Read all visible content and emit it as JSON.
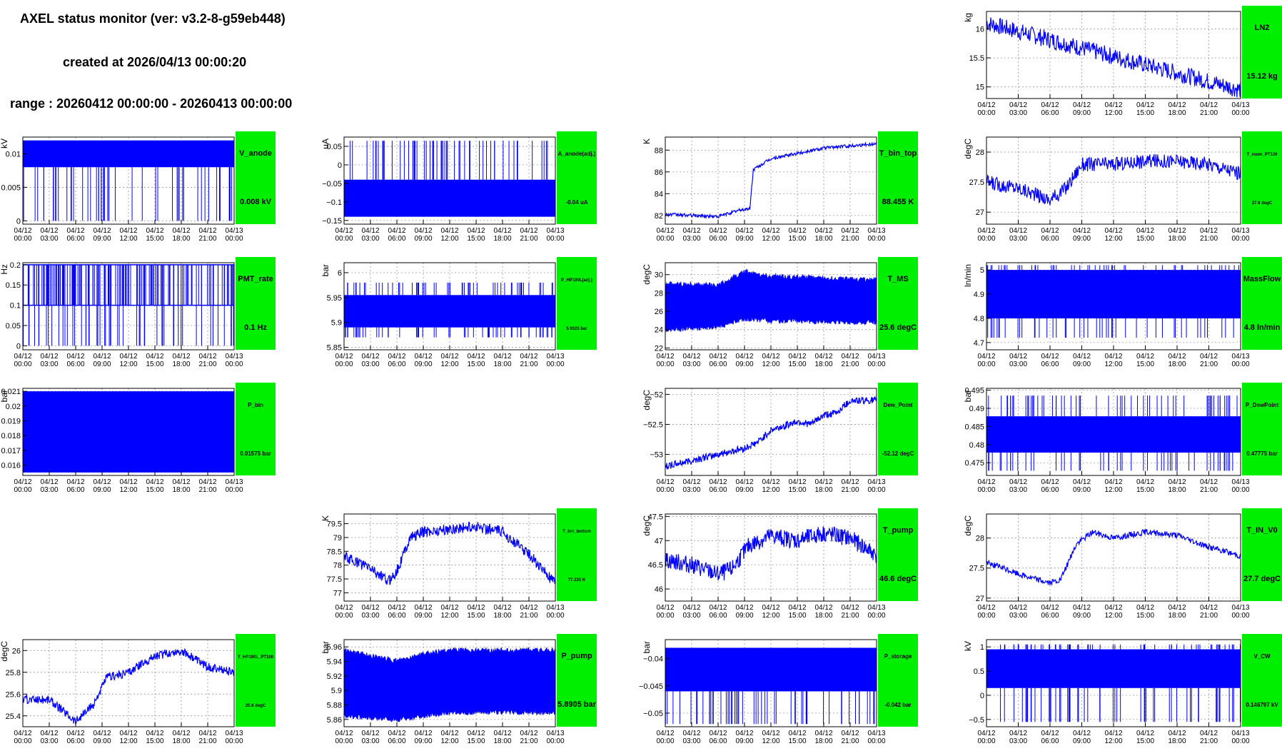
{
  "header": {
    "title": "AXEL status monitor (ver: v3.2-8-g59eb448)",
    "created": "created at 2026/04/13 00:00:20",
    "range": "range : 20260412 00:00:00 - 20260413 00:00:00"
  },
  "colors": {
    "trace": "#0000ff",
    "badge": "#00ee00",
    "frame": "#000000",
    "grid": "#888888"
  },
  "time_ticks": [
    [
      "04/12",
      "00:00"
    ],
    [
      "04/12",
      "03:00"
    ],
    [
      "04/12",
      "06:00"
    ],
    [
      "04/12",
      "09:00"
    ],
    [
      "04/12",
      "12:00"
    ],
    [
      "04/12",
      "15:00"
    ],
    [
      "04/12",
      "18:00"
    ],
    [
      "04/12",
      "21:00"
    ],
    [
      "04/13",
      "00:00"
    ]
  ],
  "chart_data": [
    {
      "id": "LN2",
      "type": "line",
      "title": "LN2",
      "value_label": "15.12 kg",
      "ylabel": "kg",
      "ylim": [
        14.8,
        16.3
      ],
      "y_ticks": [
        {
          "v": 15,
          "label": "15"
        },
        {
          "v": 15.5,
          "label": "15.5"
        },
        {
          "v": 16,
          "label": "16"
        }
      ],
      "x": [
        0,
        24
      ],
      "y_trend": [
        16.1,
        14.95
      ],
      "noise": 0.15,
      "grid": true,
      "title_size": "large",
      "value_size": "large"
    },
    {
      "id": "V_anode",
      "type": "line",
      "title": "V_anode",
      "value_label": "0.008 kV",
      "ylabel": "kV",
      "ylim": [
        -0.0005,
        0.0125
      ],
      "y_ticks": [
        {
          "v": 0,
          "label": "0"
        },
        {
          "v": 0.005,
          "label": "0.005"
        },
        {
          "v": 0.01,
          "label": "0.01"
        }
      ],
      "band": [
        0.008,
        0.012
      ],
      "spikes_low": 0.0,
      "x": [
        0,
        24
      ],
      "grid": true,
      "title_size": "large",
      "value_size": "large"
    },
    {
      "id": "A_anode",
      "type": "line",
      "title": "A_anode(adj.)",
      "value_label": "-0.04 uA",
      "ylabel": "uA",
      "ylim": [
        -0.16,
        0.075
      ],
      "y_ticks": [
        {
          "v": -0.15,
          "label": "−0.15"
        },
        {
          "v": -0.1,
          "label": "−0.1"
        },
        {
          "v": -0.05,
          "label": "−0.05"
        },
        {
          "v": 0,
          "label": "0"
        },
        {
          "v": 0.05,
          "label": "0.05"
        }
      ],
      "band": [
        -0.14,
        -0.04
      ],
      "spikes_high": 0.065,
      "x": [
        0,
        24
      ],
      "grid": true,
      "title_size": "small",
      "value_size": "small"
    },
    {
      "id": "T_bin_top",
      "type": "line",
      "title": "T_bin_top",
      "value_label": "88.455 K",
      "ylabel": "K",
      "ylim": [
        81.2,
        89.2
      ],
      "y_ticks": [
        {
          "v": 82,
          "label": "82"
        },
        {
          "v": 84,
          "label": "84"
        },
        {
          "v": 86,
          "label": "86"
        },
        {
          "v": 88,
          "label": "88"
        }
      ],
      "x": [
        0,
        3,
        6,
        8.5,
        9.6,
        10,
        12,
        15,
        18,
        21,
        24
      ],
      "y": [
        82.1,
        82.0,
        81.9,
        82.5,
        82.6,
        86.2,
        87.2,
        87.7,
        88.2,
        88.4,
        88.6
      ],
      "noise": 0.15,
      "grid": true,
      "title_size": "large",
      "value_size": "large"
    },
    {
      "id": "T_room_PT100",
      "type": "line",
      "title": "T_room_PT100",
      "value_label": "27.6 degC",
      "ylabel": "degC",
      "ylim": [
        26.8,
        28.25
      ],
      "y_ticks": [
        {
          "v": 27,
          "label": "27"
        },
        {
          "v": 27.5,
          "label": "27.5"
        },
        {
          "v": 28,
          "label": "28"
        }
      ],
      "x": [
        0,
        3,
        6,
        7.5,
        9,
        12,
        15,
        18,
        21,
        24
      ],
      "y": [
        27.5,
        27.4,
        27.2,
        27.4,
        27.8,
        27.8,
        27.85,
        27.85,
        27.8,
        27.65
      ],
      "noise": 0.12,
      "grid": true,
      "title_size": "tiny",
      "value_size": "tiny"
    },
    {
      "id": "PMT_rate",
      "type": "line",
      "title": "PMT_rate",
      "value_label": "0.1 Hz",
      "ylabel": "Hz",
      "ylim": [
        -0.01,
        0.205
      ],
      "y_ticks": [
        {
          "v": 0,
          "label": "0"
        },
        {
          "v": 0.05,
          "label": "0.05"
        },
        {
          "v": 0.1,
          "label": "0.1"
        },
        {
          "v": 0.15,
          "label": "0.15"
        },
        {
          "v": 0.2,
          "label": "0.2"
        }
      ],
      "levels": [
        0.1,
        0.2
      ],
      "spikes_low": 0.0,
      "x": [
        0,
        24
      ],
      "grid": true,
      "title_size": "large",
      "value_size": "large"
    },
    {
      "id": "P_HP190L",
      "type": "line",
      "title": "P_HP190L(adj.)",
      "value_label": "5.9325 bar",
      "ylabel": "bar",
      "ylim": [
        5.845,
        6.02
      ],
      "y_ticks": [
        {
          "v": 5.85,
          "label": "5.85"
        },
        {
          "v": 5.9,
          "label": "5.9"
        },
        {
          "v": 5.95,
          "label": "5.95"
        },
        {
          "v": 6,
          "label": "6"
        }
      ],
      "band": [
        5.89,
        5.955
      ],
      "spikes_high": 5.98,
      "spikes_low": 5.87,
      "x": [
        0,
        24
      ],
      "grid": true,
      "title_size": "tiny",
      "value_size": "tiny"
    },
    {
      "id": "T_MS",
      "type": "line",
      "title": "T_MS",
      "value_label": "25.6 degC",
      "ylabel": "degC",
      "ylim": [
        21.8,
        31.3
      ],
      "y_ticks": [
        {
          "v": 22,
          "label": "22"
        },
        {
          "v": 24,
          "label": "24"
        },
        {
          "v": 26,
          "label": "26"
        },
        {
          "v": 28,
          "label": "28"
        },
        {
          "v": 30,
          "label": "30"
        }
      ],
      "x": [
        0,
        6,
        9,
        12,
        24
      ],
      "y_top": [
        29,
        28.8,
        30.3,
        29.8,
        29.4
      ],
      "y_bot": [
        24,
        24.3,
        25.2,
        25,
        24.8
      ],
      "grid": true,
      "title_size": "large",
      "value_size": "large"
    },
    {
      "id": "MassFlow",
      "type": "line",
      "title": "MassFlow",
      "value_label": "4.8 ln/min",
      "ylabel": "ln/min",
      "ylim": [
        4.67,
        5.03
      ],
      "y_ticks": [
        {
          "v": 4.7,
          "label": "4.7"
        },
        {
          "v": 4.8,
          "label": "4.8"
        },
        {
          "v": 4.9,
          "label": "4.9"
        },
        {
          "v": 5,
          "label": "5"
        }
      ],
      "band": [
        4.8,
        5.0
      ],
      "spikes_high": 5.02,
      "spikes_low": 4.72,
      "x": [
        0,
        24
      ],
      "grid": true,
      "title_size": "large",
      "value_size": "large"
    },
    {
      "id": "P_bin",
      "type": "line",
      "title": "P_bin",
      "value_label": "0.01575 bar",
      "ylabel": "bar",
      "ylim": [
        0.0153,
        0.0212
      ],
      "y_ticks": [
        {
          "v": 0.016,
          "label": "0.016"
        },
        {
          "v": 0.017,
          "label": "0.017"
        },
        {
          "v": 0.018,
          "label": "0.018"
        },
        {
          "v": 0.019,
          "label": "0.019"
        },
        {
          "v": 0.02,
          "label": "0.02"
        },
        {
          "v": 0.021,
          "label": "0.021"
        }
      ],
      "band": [
        0.0155,
        0.021
      ],
      "x": [
        0,
        24
      ],
      "grid": true,
      "title_size": "small",
      "value_size": "small"
    },
    {
      "id": "Dew_Point",
      "type": "line",
      "title": "Dew_Point",
      "value_label": "-52.12 degC",
      "ylabel": "degC",
      "ylim": [
        -53.35,
        -51.9
      ],
      "y_ticks": [
        {
          "v": -53,
          "label": "−53"
        },
        {
          "v": -52.5,
          "label": "−52.5"
        },
        {
          "v": -52,
          "label": "−52"
        }
      ],
      "x": [
        0,
        3,
        6,
        9,
        10.5,
        12,
        15,
        16.5,
        18,
        19.5,
        21,
        22,
        24
      ],
      "y": [
        -53.2,
        -53.1,
        -53.0,
        -52.9,
        -52.8,
        -52.6,
        -52.45,
        -52.5,
        -52.35,
        -52.3,
        -52.1,
        -52.1,
        -52.1
      ],
      "noise": 0.06,
      "grid": true,
      "title_size": "small",
      "value_size": "small"
    },
    {
      "id": "P_DewPoint",
      "type": "line",
      "title": "P_DewPoint",
      "value_label": "0.47775 bar",
      "ylabel": "bar",
      "ylim": [
        0.4715,
        0.4955
      ],
      "y_ticks": [
        {
          "v": 0.475,
          "label": "0.475"
        },
        {
          "v": 0.48,
          "label": "0.48"
        },
        {
          "v": 0.485,
          "label": "0.485"
        },
        {
          "v": 0.49,
          "label": "0.49"
        },
        {
          "v": 0.495,
          "label": "0.495"
        }
      ],
      "band": [
        0.4778,
        0.4878
      ],
      "spikes_high": 0.4935,
      "spikes_low": 0.4728,
      "x": [
        0,
        24
      ],
      "grid": true,
      "title_size": "small",
      "value_size": "small"
    },
    {
      "id": "T_bin_bottom",
      "type": "line",
      "title": "T_bin_bottom",
      "value_label": "77.235 K",
      "ylabel": "K",
      "ylim": [
        76.7,
        79.85
      ],
      "y_ticks": [
        {
          "v": 77,
          "label": "77"
        },
        {
          "v": 77.5,
          "label": "77.5"
        },
        {
          "v": 78,
          "label": "78"
        },
        {
          "v": 78.5,
          "label": "78.5"
        },
        {
          "v": 79,
          "label": "79"
        },
        {
          "v": 79.5,
          "label": "79.5"
        }
      ],
      "x": [
        0,
        3,
        5,
        6,
        7.5,
        9,
        12,
        15,
        18,
        21,
        24
      ],
      "y": [
        78.3,
        77.9,
        77.4,
        77.8,
        79.0,
        79.2,
        79.3,
        79.4,
        79.2,
        78.4,
        77.3
      ],
      "noise": 0.2,
      "grid": true,
      "title_size": "tiny",
      "value_size": "tiny"
    },
    {
      "id": "T_pump",
      "type": "line",
      "title": "T_pump",
      "value_label": "46.6 degC",
      "ylabel": "degC",
      "ylim": [
        45.75,
        47.55
      ],
      "y_ticks": [
        {
          "v": 46,
          "label": "46"
        },
        {
          "v": 46.5,
          "label": "46.5"
        },
        {
          "v": 47,
          "label": "47"
        },
        {
          "v": 47.5,
          "label": "47.5"
        }
      ],
      "x": [
        0,
        3,
        6,
        7.5,
        9.5,
        12,
        15,
        18,
        21,
        24
      ],
      "y": [
        46.6,
        46.5,
        46.3,
        46.4,
        46.9,
        47.1,
        47.0,
        47.15,
        47.05,
        46.7
      ],
      "noise": 0.18,
      "grid": true,
      "title_size": "large",
      "value_size": "large"
    },
    {
      "id": "T_IN_V0",
      "type": "line",
      "title": "T_IN_V0",
      "value_label": "27.7 degC",
      "ylabel": "degC",
      "ylim": [
        26.95,
        28.4
      ],
      "y_ticks": [
        {
          "v": 27,
          "label": "27"
        },
        {
          "v": 27.5,
          "label": "27.5"
        },
        {
          "v": 28,
          "label": "28"
        }
      ],
      "x": [
        0,
        3,
        6,
        7,
        8.5,
        10,
        12,
        15,
        18,
        21,
        24
      ],
      "y": [
        27.6,
        27.4,
        27.25,
        27.3,
        27.9,
        28.1,
        28.0,
        28.1,
        28.05,
        27.85,
        27.7
      ],
      "noise": 0.05,
      "grid": true,
      "title_size": "large",
      "value_size": "large"
    },
    {
      "id": "T_HP190L_PT100",
      "type": "line",
      "title": "T_HP190L_PT100",
      "value_label": "25.6 degC",
      "ylabel": "degC",
      "ylim": [
        25.3,
        26.1
      ],
      "y_ticks": [
        {
          "v": 25.4,
          "label": "25.4"
        },
        {
          "v": 25.6,
          "label": "25.6"
        },
        {
          "v": 25.8,
          "label": "25.8"
        },
        {
          "v": 26,
          "label": "26"
        }
      ],
      "x": [
        0,
        3,
        4.5,
        6,
        8,
        9.5,
        12,
        15,
        18,
        21,
        24
      ],
      "y": [
        25.55,
        25.55,
        25.45,
        25.35,
        25.5,
        25.75,
        25.8,
        25.95,
        26.0,
        25.85,
        25.8
      ],
      "noise": 0.04,
      "grid": true,
      "title_size": "tiny",
      "value_size": "tiny"
    },
    {
      "id": "P_pump",
      "type": "line",
      "title": "P_pump",
      "value_label": "5.8905 bar",
      "ylabel": "bar",
      "ylim": [
        5.85,
        5.97
      ],
      "y_ticks": [
        {
          "v": 5.86,
          "label": "5.86"
        },
        {
          "v": 5.88,
          "label": "5.88"
        },
        {
          "v": 5.9,
          "label": "5.9"
        },
        {
          "v": 5.92,
          "label": "5.92"
        },
        {
          "v": 5.94,
          "label": "5.94"
        },
        {
          "v": 5.96,
          "label": "5.96"
        }
      ],
      "x": [
        0,
        6,
        9,
        12,
        24
      ],
      "y_top": [
        5.955,
        5.94,
        5.95,
        5.955,
        5.955
      ],
      "y_bot": [
        5.865,
        5.86,
        5.865,
        5.87,
        5.87
      ],
      "grid": true,
      "title_size": "large",
      "value_size": "large"
    },
    {
      "id": "P_storage",
      "type": "line",
      "title": "P_storage",
      "value_label": "-0.042 bar",
      "ylabel": "bar",
      "ylim": [
        -0.0525,
        -0.0365
      ],
      "y_ticks": [
        {
          "v": -0.05,
          "label": "−0.05"
        },
        {
          "v": -0.045,
          "label": "−0.045"
        },
        {
          "v": -0.04,
          "label": "−0.04"
        }
      ],
      "band": [
        -0.046,
        -0.038
      ],
      "spikes_low": -0.052,
      "x": [
        0,
        24
      ],
      "grid": true,
      "title_size": "small",
      "value_size": "small"
    },
    {
      "id": "V_CW",
      "type": "line",
      "title": "V_CW",
      "value_label": "0.146797 kV",
      "ylabel": "kV",
      "ylim": [
        -0.65,
        1.15
      ],
      "y_ticks": [
        {
          "v": -0.5,
          "label": "−0.5"
        },
        {
          "v": 0,
          "label": "0"
        },
        {
          "v": 0.5,
          "label": "0.5"
        },
        {
          "v": 1,
          "label": "1"
        }
      ],
      "band": [
        0.15,
        0.95
      ],
      "spikes_low": -0.55,
      "spikes_high": 1.05,
      "x": [
        0,
        24
      ],
      "grid": true,
      "title_size": "small",
      "value_size": "small"
    }
  ]
}
